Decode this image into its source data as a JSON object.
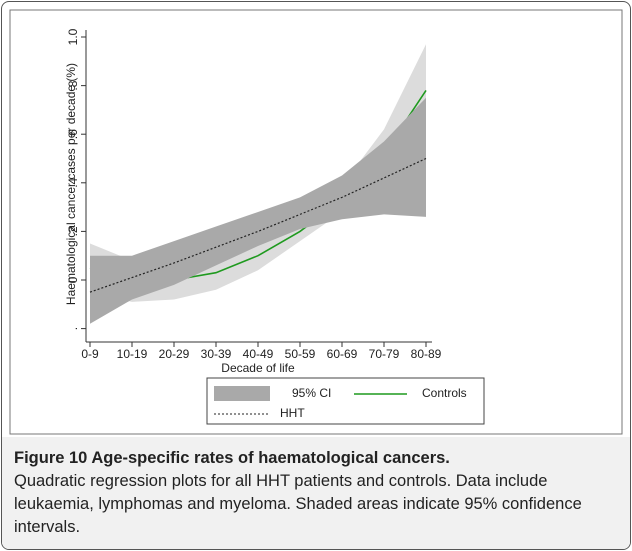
{
  "chart_data": {
    "type": "line",
    "y_label": "Haematological cancer cases per decade (%)",
    "x_label": "Decade of life",
    "categories": [
      "0-9",
      "10-19",
      "20-29",
      "30-39",
      "40-49",
      "50-59",
      "60-69",
      "70-79",
      "80-89"
    ],
    "ylim": [
      -0.2,
      1.0
    ],
    "yticks": [
      {
        "value": -0.2,
        "label": "."
      },
      0,
      {
        "value": 0.2,
        "label": ".2"
      },
      {
        "value": 0.4,
        "label": ".4"
      },
      {
        "value": 0.6,
        "label": ".6"
      },
      {
        "value": 0.8,
        "label": ".8"
      },
      {
        "value": 1.0,
        "label": "1.0"
      }
    ],
    "grid": false,
    "ci_legend": "95% CI",
    "series": [
      {
        "name": "Controls",
        "color": "#1f9a1f",
        "ci_color": "#dcdcdc",
        "values": [
          0.05,
          0.0,
          0.0,
          0.03,
          0.1,
          0.2,
          0.33,
          0.52,
          0.78
        ],
        "ci_lower": [
          -0.05,
          -0.09,
          -0.08,
          -0.04,
          0.04,
          0.16,
          0.28,
          0.42,
          0.6
        ],
        "ci_upper": [
          0.15,
          0.08,
          0.08,
          0.11,
          0.17,
          0.25,
          0.39,
          0.62,
          0.97
        ]
      },
      {
        "name": "HHT",
        "color": "#222222",
        "ci_color": "#a9a9a9",
        "values": [
          -0.05,
          0.01,
          0.07,
          0.135,
          0.2,
          0.27,
          0.34,
          0.42,
          0.5
        ],
        "ci_lower": [
          -0.18,
          -0.08,
          -0.02,
          0.06,
          0.14,
          0.21,
          0.25,
          0.27,
          0.26
        ],
        "ci_upper": [
          0.1,
          0.1,
          0.16,
          0.22,
          0.28,
          0.34,
          0.43,
          0.57,
          0.75
        ]
      }
    ]
  },
  "caption": {
    "title": "Figure 10 Age-specific rates of haematological cancers.",
    "text": "Quadratic regression plots for all HHT patients and controls. Data include leukaemia, lymphomas and myeloma. Shaded areas indicate 95% confidence intervals."
  }
}
